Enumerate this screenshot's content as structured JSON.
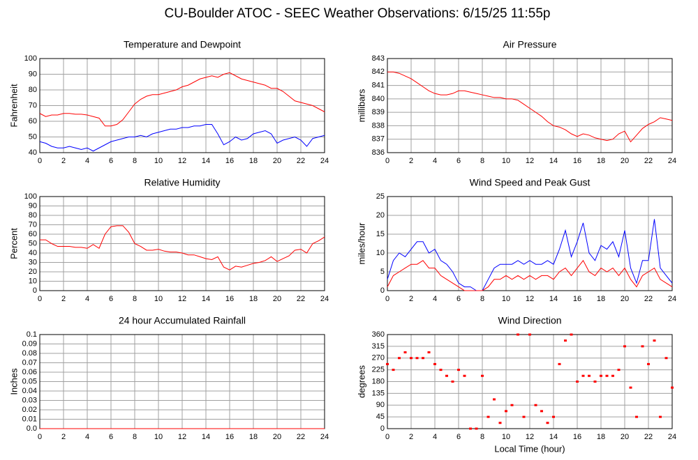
{
  "title": "CU-Boulder ATOC - SEEC Weather Observations: 6/15/25 11:55p",
  "chart_data": [
    {
      "type": "line",
      "title": "Temperature and Dewpoint",
      "y_label": "Fahrenheit",
      "x": [
        0,
        0.5,
        1,
        1.5,
        2,
        2.5,
        3,
        3.5,
        4,
        4.5,
        5,
        5.5,
        6,
        6.5,
        7,
        7.5,
        8,
        8.5,
        9,
        9.5,
        10,
        10.5,
        11,
        11.5,
        12,
        12.5,
        13,
        13.5,
        14,
        14.5,
        15,
        15.5,
        16,
        16.5,
        17,
        17.5,
        18,
        18.5,
        19,
        19.5,
        20,
        20.5,
        21,
        21.5,
        22,
        22.5,
        23,
        23.5,
        24
      ],
      "series": [
        {
          "name": "Temperature",
          "color": "#ff0000",
          "values": [
            65,
            63,
            64,
            64,
            65,
            65,
            64.5,
            64.5,
            64,
            63,
            62,
            57,
            57,
            58,
            61,
            66,
            71,
            74,
            76,
            77,
            77,
            78,
            79,
            80,
            82,
            83,
            85,
            87,
            88,
            89,
            88,
            90,
            91,
            89,
            87,
            86,
            85,
            84,
            83,
            81,
            81,
            79,
            76,
            73,
            72,
            71,
            70,
            68,
            66
          ]
        },
        {
          "name": "Dewpoint",
          "color": "#0000ff",
          "values": [
            47,
            46,
            44,
            43,
            43,
            44,
            43,
            42,
            43,
            41,
            43,
            45,
            47,
            48,
            49,
            50,
            50,
            51,
            50,
            52,
            53,
            54,
            55,
            55,
            56,
            56,
            57,
            57,
            58,
            58,
            52,
            45,
            47,
            50,
            48,
            49,
            52,
            53,
            54,
            52,
            46,
            48,
            49,
            50,
            48,
            44,
            49,
            50,
            51
          ]
        }
      ],
      "xlim": [
        0,
        24
      ],
      "xticks": [
        0,
        2,
        4,
        6,
        8,
        10,
        12,
        14,
        16,
        18,
        20,
        22,
        24
      ],
      "ylim": [
        40,
        100
      ],
      "yticks": [
        40,
        50,
        60,
        70,
        80,
        90,
        100
      ],
      "grid": true
    },
    {
      "type": "line",
      "title": "Air Pressure",
      "y_label": "millibars",
      "x": [
        0,
        0.5,
        1,
        1.5,
        2,
        2.5,
        3,
        3.5,
        4,
        4.5,
        5,
        5.5,
        6,
        6.5,
        7,
        7.5,
        8,
        8.5,
        9,
        9.5,
        10,
        10.5,
        11,
        11.5,
        12,
        12.5,
        13,
        13.5,
        14,
        14.5,
        15,
        15.5,
        16,
        16.5,
        17,
        17.5,
        18,
        18.5,
        19,
        19.5,
        20,
        20.5,
        21,
        21.5,
        22,
        22.5,
        23,
        23.5,
        24
      ],
      "series": [
        {
          "name": "Pressure",
          "color": "#ff0000",
          "values": [
            842,
            842,
            841.9,
            841.7,
            841.5,
            841.2,
            840.9,
            840.6,
            840.4,
            840.3,
            840.3,
            840.4,
            840.6,
            840.6,
            840.5,
            840.4,
            840.3,
            840.2,
            840.1,
            840.1,
            840,
            840,
            839.9,
            839.6,
            839.3,
            839,
            838.7,
            838.3,
            838,
            837.9,
            837.7,
            837.4,
            837.2,
            837.4,
            837.3,
            837.1,
            837,
            836.9,
            837,
            837.4,
            837.6,
            836.8,
            837.3,
            837.8,
            838.1,
            838.3,
            838.6,
            838.5,
            838.4
          ]
        }
      ],
      "xlim": [
        0,
        24
      ],
      "xticks": [
        0,
        2,
        4,
        6,
        8,
        10,
        12,
        14,
        16,
        18,
        20,
        22,
        24
      ],
      "ylim": [
        836,
        843
      ],
      "yticks": [
        836,
        837,
        838,
        839,
        840,
        841,
        842,
        843
      ],
      "grid": true
    },
    {
      "type": "line",
      "title": "Relative Humidity",
      "y_label": "Percent",
      "x": [
        0,
        0.5,
        1,
        1.5,
        2,
        2.5,
        3,
        3.5,
        4,
        4.5,
        5,
        5.5,
        6,
        6.5,
        7,
        7.5,
        8,
        8.5,
        9,
        9.5,
        10,
        10.5,
        11,
        11.5,
        12,
        12.5,
        13,
        13.5,
        14,
        14.5,
        15,
        15.5,
        16,
        16.5,
        17,
        17.5,
        18,
        18.5,
        19,
        19.5,
        20,
        20.5,
        21,
        21.5,
        22,
        22.5,
        23,
        23.5,
        24
      ],
      "series": [
        {
          "name": "Humidity",
          "color": "#ff0000",
          "values": [
            54,
            54,
            50,
            47,
            47,
            47,
            46,
            46,
            45,
            49,
            45,
            60,
            68,
            69,
            69,
            62,
            50,
            47,
            43,
            43,
            44,
            42,
            41,
            41,
            40,
            38,
            38,
            36,
            34,
            33,
            36,
            25,
            22,
            26,
            25,
            27,
            29,
            30,
            32,
            36,
            31,
            34,
            37,
            43,
            44,
            40,
            50,
            53,
            57
          ]
        }
      ],
      "xlim": [
        0,
        24
      ],
      "xticks": [
        0,
        2,
        4,
        6,
        8,
        10,
        12,
        14,
        16,
        18,
        20,
        22,
        24
      ],
      "ylim": [
        0,
        100
      ],
      "yticks": [
        0,
        10,
        20,
        30,
        40,
        50,
        60,
        70,
        80,
        90,
        100
      ],
      "grid": true
    },
    {
      "type": "line",
      "title": "Wind Speed and Peak Gust",
      "y_label": "miles/hour",
      "x": [
        0,
        0.5,
        1,
        1.5,
        2,
        2.5,
        3,
        3.5,
        4,
        4.5,
        5,
        5.5,
        6,
        6.5,
        7,
        7.5,
        8,
        8.5,
        9,
        9.5,
        10,
        10.5,
        11,
        11.5,
        12,
        12.5,
        13,
        13.5,
        14,
        14.5,
        15,
        15.5,
        16,
        16.5,
        17,
        17.5,
        18,
        18.5,
        19,
        19.5,
        20,
        20.5,
        21,
        21.5,
        22,
        22.5,
        23,
        23.5,
        24
      ],
      "series": [
        {
          "name": "Peak Gust",
          "color": "#0000ff",
          "values": [
            3,
            8,
            10,
            9,
            11,
            13,
            13,
            10,
            11,
            8,
            7,
            5,
            2,
            1,
            1,
            0,
            0,
            3,
            6,
            7,
            7,
            7,
            8,
            7,
            8,
            7,
            7,
            8,
            7,
            11,
            16,
            9,
            13,
            18,
            10,
            8,
            12,
            11,
            13,
            9,
            16,
            6,
            2,
            8,
            8,
            19,
            6,
            4,
            2
          ]
        },
        {
          "name": "Wind Speed",
          "color": "#ff0000",
          "values": [
            1,
            4,
            5,
            6,
            7,
            7,
            8,
            6,
            6,
            4,
            3,
            2,
            1,
            0,
            0,
            0,
            0,
            1,
            3,
            3,
            4,
            3,
            4,
            3,
            4,
            3,
            4,
            4,
            3,
            5,
            6,
            4,
            6,
            8,
            5,
            4,
            6,
            5,
            6,
            4,
            6,
            3,
            1,
            4,
            5,
            6,
            3,
            2,
            1
          ]
        }
      ],
      "xlim": [
        0,
        24
      ],
      "xticks": [
        0,
        2,
        4,
        6,
        8,
        10,
        12,
        14,
        16,
        18,
        20,
        22,
        24
      ],
      "ylim": [
        0,
        25
      ],
      "yticks": [
        0,
        5,
        10,
        15,
        20,
        25
      ],
      "grid": true
    },
    {
      "type": "line",
      "title": "24 hour Accumulated Rainfall",
      "y_label": "Inches",
      "x": [
        0,
        24
      ],
      "series": [
        {
          "name": "Rainfall",
          "color": "#ff0000",
          "values": [
            0,
            0
          ]
        }
      ],
      "xlim": [
        0,
        24
      ],
      "xticks": [
        0,
        2,
        4,
        6,
        8,
        10,
        12,
        14,
        16,
        18,
        20,
        22,
        24
      ],
      "ylim": [
        0,
        0.1
      ],
      "yticks": [
        {
          "value": 0,
          "label": "0.0"
        },
        0.01,
        0.02,
        0.03,
        0.04,
        0.05,
        0.06,
        0.07,
        0.08,
        0.09,
        0.1
      ],
      "grid": true
    },
    {
      "type": "scatter",
      "title": "Wind Direction",
      "y_label": "degrees",
      "x_label": "Local Time (hour)",
      "x": [
        0,
        0.5,
        1,
        1.5,
        2,
        2.5,
        3,
        3.5,
        4,
        4.5,
        5,
        5.5,
        6,
        6.5,
        7,
        7.5,
        8,
        8.5,
        9,
        9.5,
        10,
        10.5,
        11,
        11.5,
        12,
        12.5,
        13,
        13.5,
        14,
        14.5,
        15,
        15.5,
        16,
        16.5,
        17,
        17.5,
        18,
        18.5,
        19,
        19.5,
        20,
        20.5,
        21,
        21.5,
        22,
        22.5,
        23,
        23.5,
        24
      ],
      "series": [
        {
          "name": "Direction",
          "color": "#ff0000",
          "values": [
            247,
            225,
            270,
            292,
            270,
            270,
            270,
            292,
            247,
            225,
            202,
            180,
            225,
            202,
            0,
            0,
            202,
            45,
            112,
            22,
            67,
            90,
            360,
            45,
            360,
            90,
            67,
            22,
            45,
            247,
            337,
            360,
            180,
            202,
            202,
            180,
            202,
            202,
            202,
            225,
            315,
            157,
            45,
            315,
            247,
            337,
            45,
            270,
            157
          ]
        }
      ],
      "xlim": [
        0,
        24
      ],
      "xticks": [
        0,
        2,
        4,
        6,
        8,
        10,
        12,
        14,
        16,
        18,
        20,
        22,
        24
      ],
      "ylim": [
        0,
        360
      ],
      "yticks": [
        0,
        45,
        90,
        135,
        180,
        225,
        270,
        315,
        360
      ],
      "grid": true
    }
  ]
}
